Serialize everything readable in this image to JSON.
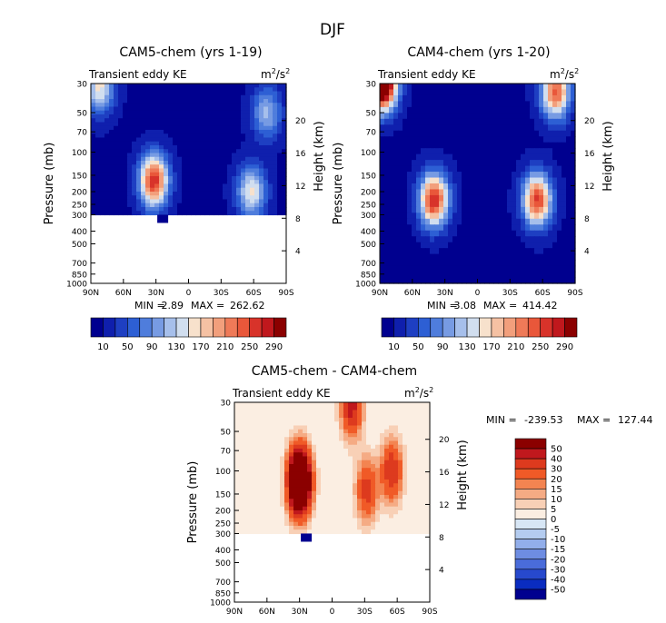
{
  "figure_title": "DJF",
  "chart_data": [
    {
      "type": "heatmap",
      "title": "CAM5-chem (yrs 1-19)",
      "subtitle_left": "Transient eddy KE",
      "units": "m²/s²",
      "units_base": "m",
      "units_sup1": "2",
      "units_mid": "/s",
      "units_sup2": "2",
      "xlabel": "",
      "ylabel": "Pressure (mb)",
      "y2label": "Height (km)",
      "x_ticks": [
        "90N",
        "60N",
        "30N",
        "0",
        "30S",
        "60S",
        "90S"
      ],
      "x_values": [
        90,
        60,
        30,
        0,
        -30,
        -60,
        -90
      ],
      "y_ticks": [
        "30",
        "50",
        "70",
        "100",
        "150",
        "200",
        "250",
        "300",
        "400",
        "500",
        "700",
        "850",
        "1000"
      ],
      "y_values": [
        30,
        50,
        70,
        100,
        150,
        200,
        250,
        300,
        400,
        500,
        700,
        850,
        1000
      ],
      "y2_ticks": [
        "20",
        "16",
        "12",
        "8",
        "4"
      ],
      "ylim": [
        1000,
        30
      ],
      "xlim": [
        90,
        -90
      ],
      "data_bottom_mb": 300,
      "min_label": "MIN =",
      "min": "2.89",
      "max_label": "MAX =",
      "max": "262.62",
      "colorbar_labels": [
        "10",
        "50",
        "90",
        "130",
        "170",
        "210",
        "250",
        "290"
      ],
      "peaks": [
        {
          "lat": 32,
          "p": 165,
          "value": 262
        },
        {
          "lat": -58,
          "p": 200,
          "value": 150
        },
        {
          "lat": -72,
          "p": 50,
          "value": 110
        },
        {
          "lat": 82,
          "p": 32,
          "value": 150
        }
      ]
    },
    {
      "type": "heatmap",
      "title": "CAM4-chem (yrs 1-20)",
      "subtitle_left": "Transient eddy KE",
      "units": "m²/s²",
      "units_base": "m",
      "units_sup1": "2",
      "units_mid": "/s",
      "units_sup2": "2",
      "xlabel": "",
      "ylabel": "Pressure (mb)",
      "y2label": "Height (km)",
      "x_ticks": [
        "90N",
        "60N",
        "30N",
        "0",
        "30S",
        "60S",
        "90S"
      ],
      "x_values": [
        90,
        60,
        30,
        0,
        -30,
        -60,
        -90
      ],
      "y_ticks": [
        "30",
        "50",
        "70",
        "100",
        "150",
        "200",
        "250",
        "300",
        "400",
        "500",
        "700",
        "850",
        "1000"
      ],
      "y_values": [
        30,
        50,
        70,
        100,
        150,
        200,
        250,
        300,
        400,
        500,
        700,
        850,
        1000
      ],
      "y2_ticks": [
        "20",
        "16",
        "12",
        "8",
        "4"
      ],
      "ylim": [
        1000,
        30
      ],
      "xlim": [
        90,
        -90
      ],
      "data_bottom_mb": 1000,
      "min_label": "MIN =",
      "min": "3.08",
      "max_label": "MAX =",
      "max": "414.42",
      "colorbar_labels": [
        "10",
        "50",
        "90",
        "130",
        "170",
        "210",
        "250",
        "290"
      ],
      "peaks": [
        {
          "lat": 40,
          "p": 230,
          "value": 270
        },
        {
          "lat": -55,
          "p": 230,
          "value": 250
        },
        {
          "lat": 88,
          "p": 30,
          "value": 414
        },
        {
          "lat": -72,
          "p": 35,
          "value": 230
        }
      ]
    },
    {
      "type": "heatmap",
      "title": "CAM5-chem - CAM4-chem",
      "subtitle_left": "Transient eddy KE",
      "units": "m²/s²",
      "units_base": "m",
      "units_sup1": "2",
      "units_mid": "/s",
      "units_sup2": "2",
      "xlabel": "",
      "ylabel": "Pressure (mb)",
      "y2label": "Height (km)",
      "x_ticks": [
        "90N",
        "60N",
        "30N",
        "0",
        "30S",
        "60S",
        "90S"
      ],
      "x_values": [
        90,
        60,
        30,
        0,
        -30,
        -60,
        -90
      ],
      "y_ticks": [
        "30",
        "50",
        "70",
        "100",
        "150",
        "200",
        "250",
        "300",
        "400",
        "500",
        "700",
        "850",
        "1000"
      ],
      "y_values": [
        30,
        50,
        70,
        100,
        150,
        200,
        250,
        300,
        400,
        500,
        700,
        850,
        1000
      ],
      "y2_ticks": [
        "20",
        "16",
        "12",
        "8",
        "4"
      ],
      "ylim": [
        1000,
        30
      ],
      "xlim": [
        90,
        -90
      ],
      "data_bottom_mb": 300,
      "min_label": "MIN =",
      "min": "-239.53",
      "max_label": "MAX =",
      "max": "127.44",
      "colorbar_labels": [
        "50",
        "40",
        "30",
        "20",
        "15",
        "10",
        "5",
        "0",
        "-5",
        "-10",
        "-15",
        "-20",
        "-30",
        "-40",
        "-50"
      ],
      "peaks": [
        {
          "lat": 30,
          "p": 120,
          "value": 130
        },
        {
          "lat": -55,
          "p": 100,
          "value": 40
        },
        {
          "lat": -18,
          "p": 32,
          "value": 45
        },
        {
          "lat": -32,
          "p": 140,
          "value": 35
        }
      ]
    }
  ],
  "colors": {
    "seq": [
      "#00008f",
      "#0f1fad",
      "#1e3fc2",
      "#2d5fd4",
      "#4f7ddc",
      "#779be3",
      "#a6bfeb",
      "#d1deef",
      "#f7e1cc",
      "#f5c1a3",
      "#f29f7c",
      "#ef7a58",
      "#e9573a",
      "#d8332a",
      "#c0181d",
      "#8b0000"
    ],
    "div": [
      "#8b0000",
      "#c0181d",
      "#dd3a1e",
      "#f05a27",
      "#f38451",
      "#f5ab84",
      "#f8d0b6",
      "#fbeee2",
      "#d7e6f5",
      "#b4ccf0",
      "#92aeea",
      "#6e8de2",
      "#4a6cda",
      "#2749cd",
      "#0a2cc0",
      "#00008f"
    ]
  }
}
